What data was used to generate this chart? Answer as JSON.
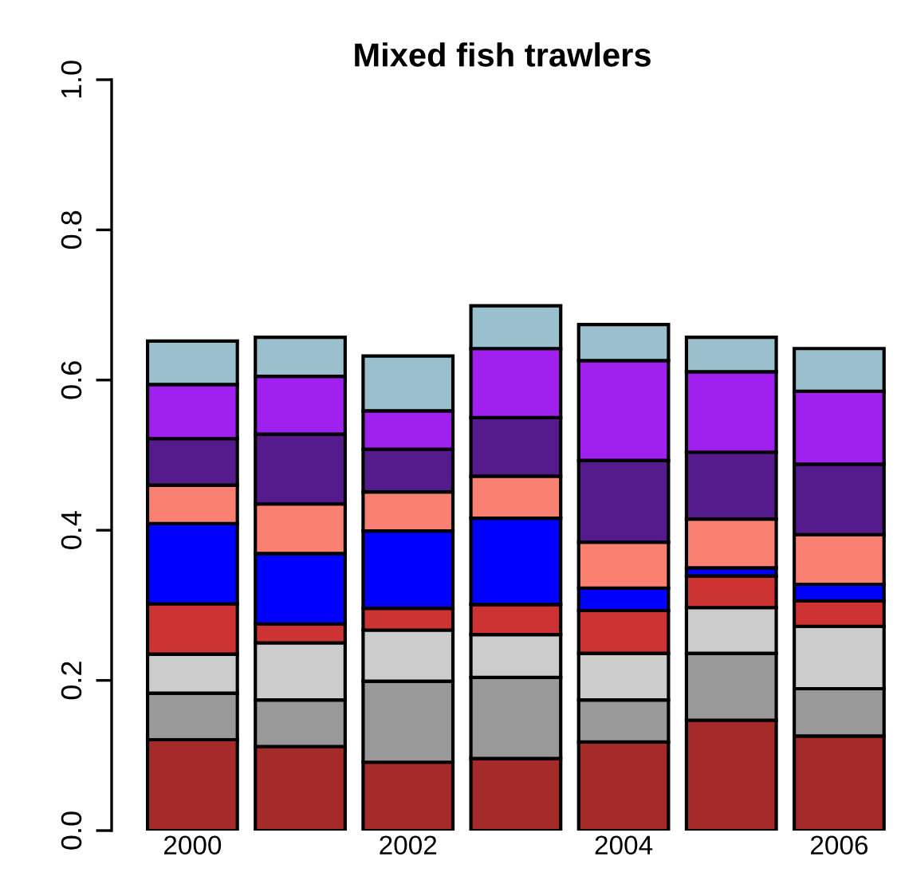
{
  "chart_data": {
    "type": "bar",
    "title": "Mixed fish trawlers",
    "stacked": true,
    "categories": [
      "2000",
      null,
      "2002",
      null,
      "2004",
      null,
      "2006"
    ],
    "series": [
      {
        "color": "#a52a2a",
        "values": [
          0.121,
          0.112,
          0.091,
          0.096,
          0.118,
          0.147,
          0.126
        ]
      },
      {
        "color": "#999999",
        "values": [
          0.062,
          0.062,
          0.108,
          0.108,
          0.056,
          0.089,
          0.063
        ]
      },
      {
        "color": "#cccccc",
        "values": [
          0.052,
          0.076,
          0.068,
          0.057,
          0.062,
          0.061,
          0.083
        ]
      },
      {
        "color": "#cd3333",
        "values": [
          0.067,
          0.025,
          0.029,
          0.04,
          0.057,
          0.042,
          0.034
        ]
      },
      {
        "color": "#0000ff",
        "values": [
          0.107,
          0.094,
          0.103,
          0.115,
          0.03,
          0.011,
          0.022
        ]
      },
      {
        "color": "#fa8072",
        "values": [
          0.051,
          0.066,
          0.052,
          0.056,
          0.061,
          0.065,
          0.066
        ]
      },
      {
        "color": "#551a8b",
        "values": [
          0.062,
          0.093,
          0.057,
          0.078,
          0.109,
          0.089,
          0.094
        ]
      },
      {
        "color": "#a020f0",
        "values": [
          0.072,
          0.077,
          0.051,
          0.092,
          0.133,
          0.107,
          0.097
        ]
      },
      {
        "color": "#9ac0cd",
        "values": [
          0.058,
          0.052,
          0.073,
          0.057,
          0.048,
          0.046,
          0.057
        ]
      }
    ],
    "ylim": [
      0,
      1
    ],
    "yticks": [
      {
        "value": 0,
        "label": "0.0"
      },
      0.2,
      0.4,
      0.6,
      0.8,
      {
        "value": 1,
        "label": "1.0"
      }
    ]
  }
}
